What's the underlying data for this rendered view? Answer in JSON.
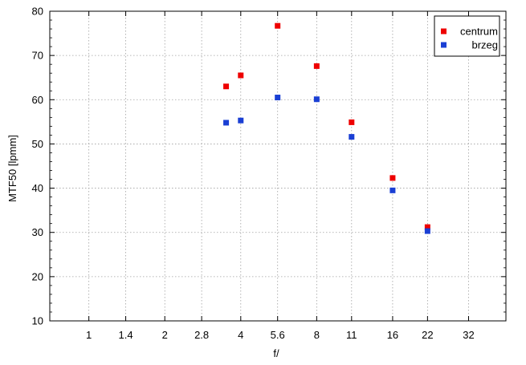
{
  "chart_data": {
    "type": "scatter",
    "xlabel": "f/",
    "ylabel": "MTF50 [lpmm]",
    "x_scale": "log2",
    "xlim": [
      0.7,
      45
    ],
    "ylim": [
      10,
      80
    ],
    "x_ticks": [
      {
        "value": 1,
        "label": "1"
      },
      {
        "value": 1.4,
        "label": "1.4"
      },
      {
        "value": 2,
        "label": "2"
      },
      {
        "value": 2.8,
        "label": "2.8"
      },
      {
        "value": 4,
        "label": "4"
      },
      {
        "value": 5.6,
        "label": "5.6"
      },
      {
        "value": 8,
        "label": "8"
      },
      {
        "value": 11,
        "label": "11"
      },
      {
        "value": 16,
        "label": "16"
      },
      {
        "value": 22,
        "label": "22"
      },
      {
        "value": 32,
        "label": "32"
      }
    ],
    "y_ticks": [
      10,
      20,
      30,
      40,
      50,
      60,
      70,
      80
    ],
    "grid": true,
    "legend_position": "top-right",
    "series": [
      {
        "name": "centrum",
        "color": "#ee0000",
        "points": [
          {
            "x": 3.5,
            "y": 63.0
          },
          {
            "x": 4,
            "y": 65.5
          },
          {
            "x": 5.6,
            "y": 76.7
          },
          {
            "x": 8,
            "y": 67.6
          },
          {
            "x": 11,
            "y": 54.9
          },
          {
            "x": 16,
            "y": 42.3
          },
          {
            "x": 22,
            "y": 31.2
          }
        ]
      },
      {
        "name": "brzeg",
        "color": "#1a3fd4",
        "points": [
          {
            "x": 3.5,
            "y": 54.8
          },
          {
            "x": 4,
            "y": 55.3
          },
          {
            "x": 5.6,
            "y": 60.5
          },
          {
            "x": 8,
            "y": 60.1
          },
          {
            "x": 11,
            "y": 51.6
          },
          {
            "x": 16,
            "y": 39.5
          },
          {
            "x": 22,
            "y": 30.3
          }
        ]
      }
    ]
  }
}
